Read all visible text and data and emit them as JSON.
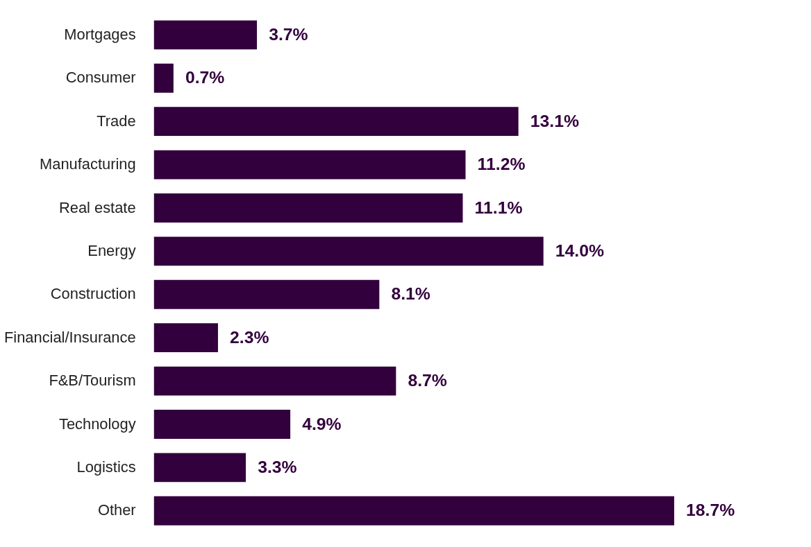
{
  "chart_data": {
    "type": "bar",
    "orientation": "horizontal",
    "categories": [
      "Mortgages",
      "Consumer",
      "Trade",
      "Manufacturing",
      "Real estate",
      "Energy",
      "Construction",
      "Financial/Insurance",
      "F&B/Tourism",
      "Technology",
      "Logistics",
      "Other"
    ],
    "values": [
      3.7,
      0.7,
      13.1,
      11.2,
      11.1,
      14.0,
      8.1,
      2.3,
      8.7,
      4.9,
      3.3,
      18.7
    ],
    "value_labels": [
      "3.7%",
      "0.7%",
      "13.1%",
      "11.2%",
      "11.1%",
      "14.0%",
      "8.1%",
      "2.3%",
      "8.7%",
      "4.9%",
      "3.3%",
      "18.7%"
    ],
    "color": "#32003c"
  }
}
